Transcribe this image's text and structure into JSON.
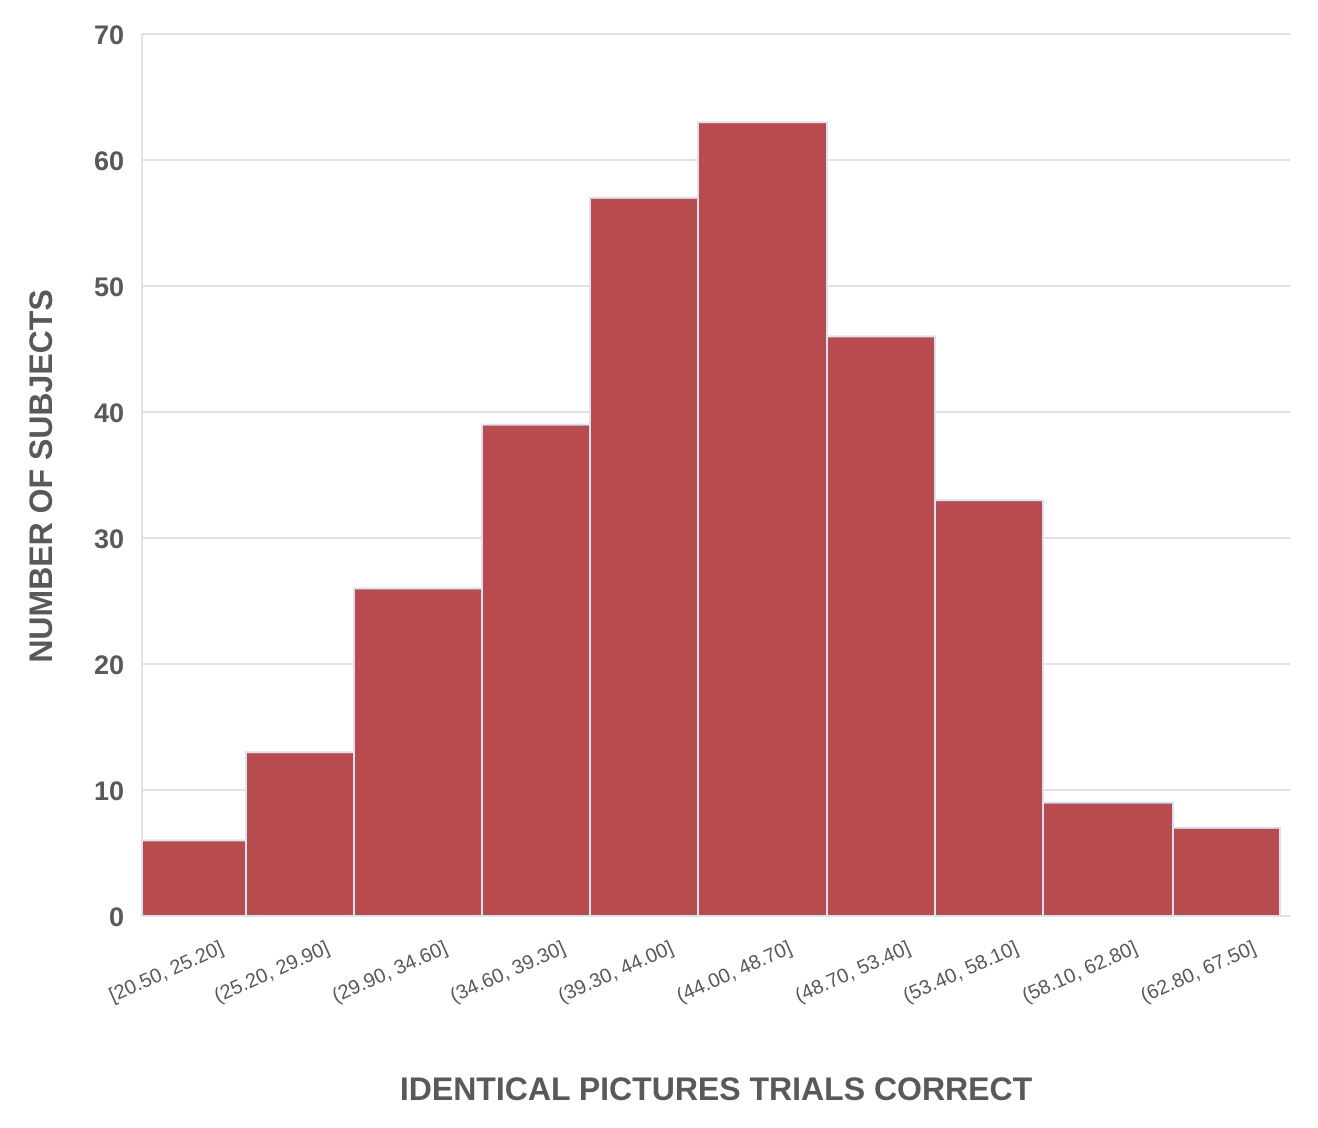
{
  "chart_data": {
    "type": "bar",
    "categories": [
      "[20.50, 25.20]",
      "(25.20, 29.90]",
      "(29.90, 34.60]",
      "(34.60, 39.30]",
      "(39.30, 44.00]",
      "(44.00, 48.70]",
      "(48.70, 53.40]",
      "(53.40, 58.10]",
      "(58.10, 62.80]",
      "(62.80, 67.50]"
    ],
    "values": [
      6,
      13,
      26,
      39,
      57,
      63,
      46,
      33,
      9,
      7
    ],
    "title": "",
    "xlabel": "IDENTICAL PICTURES TRIALS CORRECT",
    "ylabel": "NUMBER OF SUBJECTS",
    "ylim": [
      0,
      70
    ],
    "yticks": [
      0,
      10,
      20,
      30,
      40,
      50,
      60,
      70
    ],
    "grid": true,
    "legend": "none",
    "bar_color": "#B84B4E",
    "bar_edge_color": "#D9E1F2",
    "grid_color": "#D9D9D9",
    "text_color": "#595959"
  }
}
